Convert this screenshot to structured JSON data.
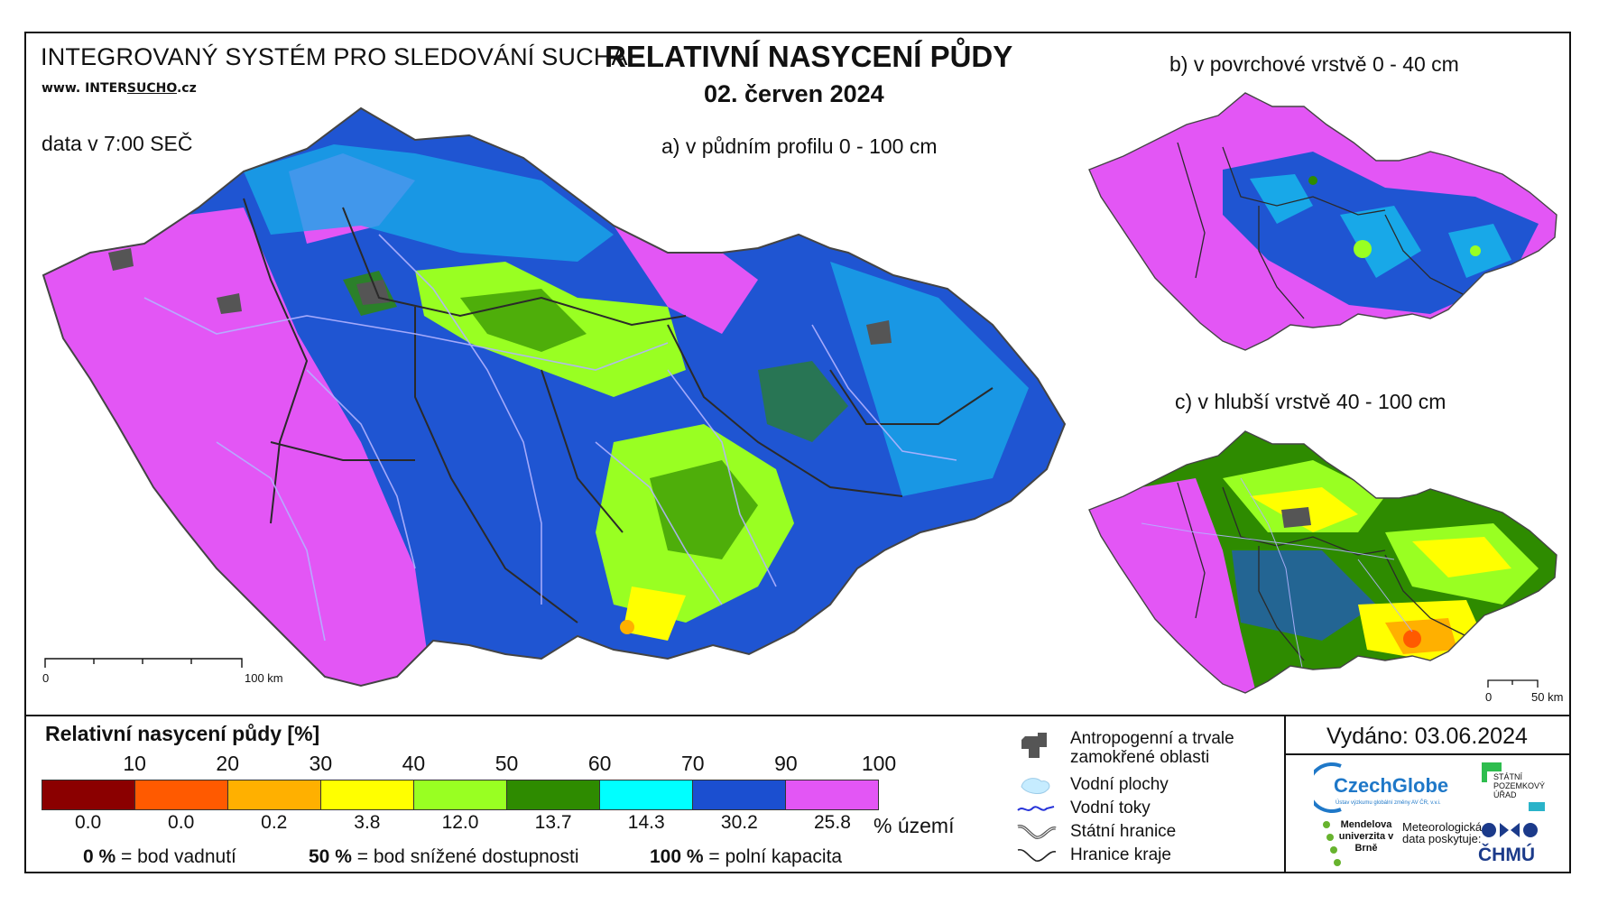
{
  "header": {
    "system_title": "INTEGROVANÝ SYSTÉM PRO SLEDOVÁNÍ SUCHA",
    "website_prefix": "www. INTER",
    "website_under": "SUCHO",
    "website_suffix": ".cz",
    "data_time": "data v 7:00 SEČ",
    "main_title": "RELATIVNÍ NASYCENÍ PŮDY",
    "main_date": "02. červen 2024"
  },
  "maps": {
    "a_label": "a) v půdním profilu 0 - 100 cm",
    "b_label": "b) v povrchové vrstvě 0 - 40 cm",
    "c_label": "c) v hlubší vrstvě 40 - 100 cm",
    "scale_a": {
      "start": "0",
      "end": "100 km"
    },
    "scale_c": {
      "start": "0",
      "end": "50 km"
    }
  },
  "legend": {
    "title": "Relativní nasycení půdy [%]",
    "ticks": [
      "10",
      "20",
      "30",
      "40",
      "50",
      "60",
      "70",
      "90",
      "100"
    ],
    "colors": [
      "#8b0000",
      "#ff5a00",
      "#ffb000",
      "#ffff00",
      "#99ff22",
      "#2e8b00",
      "#00ffff",
      "#1b4fd0",
      "#e356f5"
    ],
    "area_percent": [
      "0.0",
      "0.0",
      "0.2",
      "3.8",
      "12.0",
      "13.7",
      "14.3",
      "30.2",
      "25.8"
    ],
    "area_unit": "% území",
    "note_0_bold": "0 %",
    "note_0_text": "= bod vadnutí",
    "note_50_bold": "50 %",
    "note_50_text": "= bod snížené dostupnosti",
    "note_100_bold": "100 %",
    "note_100_text": "= polní kapacita"
  },
  "symbols": {
    "anthropogenic": "Antropogenní a trvale zamokřené oblasti",
    "water_areas": "Vodní plochy",
    "water_streams": "Vodní toky",
    "state_border": "Státní hranice",
    "region_border": "Hranice kraje"
  },
  "footer": {
    "issued": "Vydáno: 03.06.2024",
    "czechglobe": "CzechGlobe",
    "czechglobe_sub": "Ústav výzkumu globální změny AV ČR, v.v.i.",
    "spu": "STÁTNÍ POZEMKOVÝ ÚŘAD",
    "mendel": "Mendelova univerzita v Brně",
    "meteo": "Meteorologická data poskytuje:",
    "chmu": "ČHMÚ"
  }
}
